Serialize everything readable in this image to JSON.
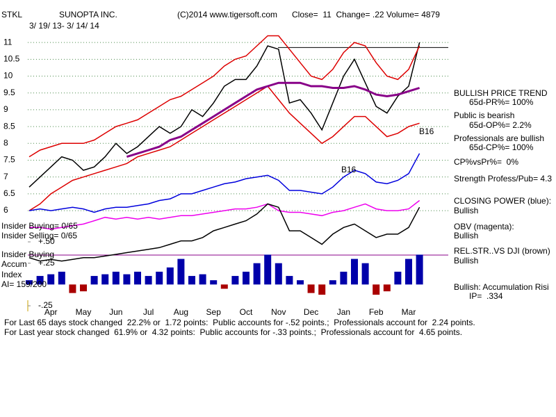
{
  "chart_data": {
    "type": "line",
    "ticker": "STKL",
    "title": "SUNOPTA INC.",
    "copyright": "(C)2014 www.tigersoft.com",
    "quote": "Close=  11  Change= .22 Volume= 4879",
    "subtitle": "3/ 19/ 13- 3/ 14/ 14",
    "categories": [
      null,
      null,
      "Apr",
      null,
      null,
      "May",
      null,
      null,
      "Jun",
      null,
      null,
      "Jul",
      null,
      null,
      "Aug",
      null,
      null,
      "Sep",
      null,
      null,
      "Oct",
      null,
      null,
      "Nov",
      null,
      null,
      "Dec",
      null,
      null,
      "Jan",
      null,
      null,
      "Feb",
      null,
      null,
      "Mar",
      null
    ],
    "ylim": [
      3.17,
      11.23
    ],
    "yticks": [
      6,
      6.5,
      7,
      7.5,
      8,
      8.5,
      9,
      9.5,
      10,
      10.5,
      11
    ],
    "grid": true,
    "series": [
      {
        "name": "Price",
        "color": "#000000",
        "values": [
          6.7,
          7.0,
          7.3,
          7.6,
          7.5,
          7.2,
          7.3,
          7.6,
          8.0,
          7.7,
          7.9,
          8.2,
          8.5,
          8.3,
          8.5,
          9.0,
          8.8,
          9.2,
          9.7,
          9.9,
          9.9,
          10.3,
          10.9,
          10.8,
          9.2,
          9.3,
          8.9,
          8.4,
          9.2,
          10.0,
          10.5,
          9.8,
          9.1,
          8.9,
          9.4,
          9.7,
          11.0
        ]
      },
      {
        "name": "Upper Band",
        "color": "#dd0000",
        "values": [
          7.6,
          7.8,
          7.9,
          8.0,
          8.0,
          8.0,
          8.1,
          8.3,
          8.5,
          8.6,
          8.7,
          8.9,
          9.1,
          9.3,
          9.4,
          9.6,
          9.8,
          10.0,
          10.3,
          10.5,
          10.6,
          10.9,
          11.2,
          11.2,
          10.8,
          10.4,
          10.0,
          9.9,
          10.2,
          10.7,
          11.0,
          10.9,
          10.4,
          10.0,
          9.9,
          10.2,
          10.9
        ]
      },
      {
        "name": "Lower Band",
        "color": "#dd0000",
        "values": [
          6.0,
          6.2,
          6.5,
          6.7,
          6.9,
          7.0,
          7.1,
          7.2,
          7.3,
          7.4,
          7.6,
          7.7,
          7.8,
          7.9,
          8.1,
          8.3,
          8.5,
          8.7,
          8.9,
          9.1,
          9.3,
          9.5,
          9.7,
          9.3,
          8.9,
          8.6,
          8.3,
          8.0,
          8.2,
          8.5,
          8.8,
          8.8,
          8.5,
          8.2,
          8.3,
          8.5,
          8.6
        ]
      },
      {
        "name": "65-day MA",
        "color": "#880088",
        "values": [
          null,
          null,
          null,
          null,
          null,
          null,
          null,
          null,
          null,
          7.6,
          7.7,
          7.8,
          7.9,
          8.1,
          8.2,
          8.4,
          8.6,
          8.8,
          9.0,
          9.2,
          9.4,
          9.6,
          9.7,
          9.8,
          9.8,
          9.8,
          9.7,
          9.7,
          9.65,
          9.65,
          9.7,
          9.6,
          9.45,
          9.4,
          9.45,
          9.55,
          9.65
        ]
      },
      {
        "name": "Closing Power",
        "color": "#0000dd",
        "values": [
          6.0,
          6.05,
          6.0,
          6.05,
          6.1,
          6.05,
          5.95,
          6.05,
          6.1,
          6.1,
          6.15,
          6.2,
          6.3,
          6.35,
          6.5,
          6.5,
          6.6,
          6.7,
          6.8,
          6.85,
          6.95,
          7.0,
          7.05,
          6.9,
          6.6,
          6.6,
          6.55,
          6.5,
          6.7,
          7.0,
          7.2,
          7.1,
          6.85,
          6.8,
          6.9,
          7.1,
          7.7
        ]
      },
      {
        "name": "OBV",
        "color": "#ee00ee",
        "values": [
          5.5,
          5.5,
          5.45,
          5.5,
          5.55,
          5.6,
          5.7,
          5.8,
          5.75,
          5.8,
          5.75,
          5.8,
          5.75,
          5.8,
          5.85,
          5.85,
          5.9,
          5.95,
          6.0,
          6.05,
          6.05,
          6.1,
          6.2,
          6.0,
          5.95,
          5.95,
          5.9,
          5.85,
          5.95,
          6.0,
          6.1,
          6.2,
          6.05,
          6.0,
          6.0,
          6.05,
          6.3
        ]
      },
      {
        "name": "Rel. Strength vs DJI",
        "color": "#000000",
        "values": [
          4.6,
          4.5,
          4.55,
          4.5,
          4.55,
          4.6,
          4.6,
          4.65,
          4.7,
          4.75,
          4.8,
          4.85,
          4.9,
          5.0,
          5.1,
          5.1,
          5.2,
          5.4,
          5.5,
          5.6,
          5.7,
          5.9,
          6.2,
          6.1,
          5.4,
          5.4,
          5.2,
          5.0,
          5.3,
          5.5,
          5.6,
          5.4,
          5.2,
          5.3,
          5.3,
          5.5,
          6.1
        ]
      },
      {
        "name": "Accum Index",
        "axis": "y2",
        "type": "bar",
        "color": "#0000aa",
        "negative_color": "#aa0000",
        "values": [
          0.05,
          0.1,
          0.12,
          0.15,
          -0.1,
          -0.08,
          0.1,
          0.12,
          0.15,
          0.12,
          0.15,
          0.1,
          0.15,
          0.2,
          0.3,
          0.1,
          0.12,
          0.05,
          -0.05,
          0.1,
          0.15,
          0.25,
          0.35,
          0.25,
          0.1,
          0.05,
          -0.1,
          -0.12,
          0.05,
          0.15,
          0.3,
          0.25,
          -0.12,
          -0.08,
          0.15,
          0.3,
          0.35
        ]
      }
    ],
    "y2lim": [
      -0.25,
      2.93
    ],
    "y2ticks": [
      {
        "value": 0.5,
        "label": "+.50"
      },
      {
        "value": 0.25,
        "label": "+.25"
      },
      {
        "value": -0.25,
        "label": "-.25"
      }
    ],
    "resistance": 10.85,
    "annotations": [
      "B16",
      "B16"
    ],
    "side_panel": [
      "BULLISH PRICE TREND",
      "65d-PR%= 100%",
      "Public is bearish",
      "65d-OP%= 2.2%",
      "Professionals are bullish",
      "65d-CP%= 100%",
      "CP%vsPr%=  0%",
      "Strength Profess/Pub= 4.3",
      "CLOSING POWER (blue):",
      "Bullish",
      "OBV (magenta):",
      "Bullish",
      "REL.STR..VS DJI (brown)",
      "Bullish",
      "Bullish: Accumulation Risi",
      "IP=  .334"
    ],
    "left_panel": [
      "Insider Buying= 0/65",
      "Insider Selling= 0/65",
      "Insider Buying",
      "Accum",
      "Index",
      "AI= 159/200"
    ],
    "footer": [
      "For Last 65 days stock changed  22.2% or  1.72 points:  Public accounts for -.52 points.;  Professionals account for  2.24 points.",
      "For Last year stock changed  61.9% or  4.32 points:  Public accounts for -.33 points.;  Professionals account for  4.65 points."
    ]
  }
}
